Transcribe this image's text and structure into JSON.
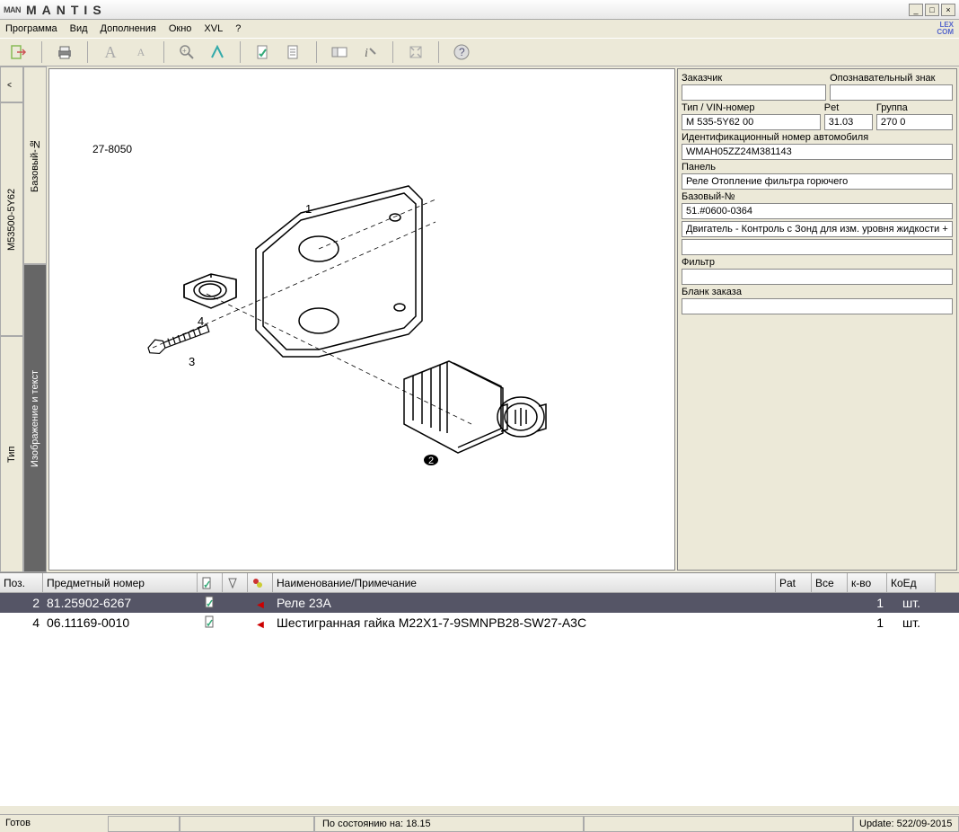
{
  "title": "MANTIS",
  "logo_text": "MAN",
  "menu": [
    "Программа",
    "Вид",
    "Дополнения",
    "Окно",
    "XVL",
    "?"
  ],
  "lex_badge": "LEX\nCOM",
  "diagram_code": "27-8050",
  "vtabs_outer": {
    "up": "^",
    "model": "M53500-5Y62",
    "type": "Тип"
  },
  "vtabs_inner": {
    "base": "Базовый-№",
    "image": "Изображение и текст"
  },
  "info": {
    "customer_label": "Заказчик",
    "customer": "",
    "sign_label": "Опознавательный знак",
    "sign": "",
    "type_label": "Тип / VIN-номер",
    "type": "M 535-5Y62 00",
    "pet_label": "Pet",
    "pet": "31.03",
    "group_label": "Группа",
    "group": "270 0",
    "vin_label": "Идентификационный номер автомобиля",
    "vin": "WMAH05ZZ24M381143",
    "panel_label": "Панель",
    "panel": "Реле Отопление фильтра горючего",
    "base_label": "Базовый-№",
    "base": "51.#0600-0364",
    "desc": "Двигатель - Контроль с Зонд для изм. уровня жидкости +",
    "filter_label": "Фильтр",
    "filter": "",
    "order_label": "Бланк заказа",
    "order": ""
  },
  "table": {
    "headers": {
      "pos": "Поз.",
      "item": "Предметный номер",
      "name": "Наименование/Примечание",
      "pat": "Pat",
      "vse": "Все",
      "qty": "к-во",
      "unit": "КоЕд"
    },
    "rows": [
      {
        "pos": "2",
        "item": "81.25902-6267",
        "name": "Реле 23A",
        "qty": "1",
        "unit": "шт.",
        "selected": true
      },
      {
        "pos": "4",
        "item": "06.11169-0010",
        "name": "Шестигранная гайка M22X1-7-9SMNPB28-SW27-A3C",
        "qty": "1",
        "unit": "шт.",
        "selected": false
      }
    ]
  },
  "status": {
    "ready": "Готов",
    "state": "По состоянию на: 18.15",
    "update": "Update: 522/09-2015"
  },
  "callouts": {
    "c1": "1",
    "c2": "2",
    "c3": "3",
    "c4": "4"
  }
}
